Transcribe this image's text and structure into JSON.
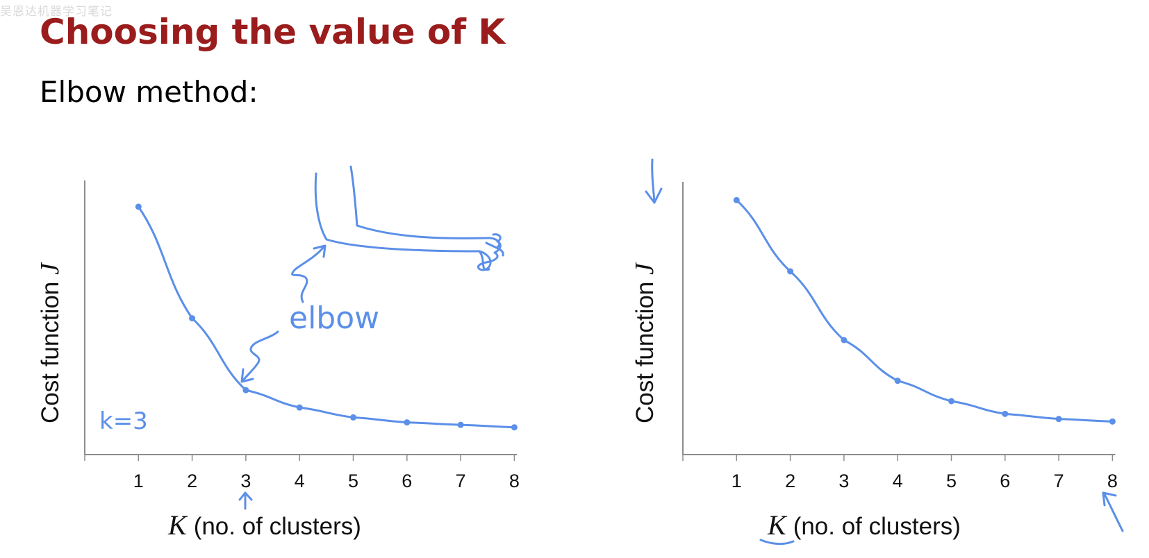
{
  "watermark": "吴恩达机器学习笔记",
  "title": "Choosing the value of K",
  "subtitle": "Elbow method:",
  "annotations": {
    "elbow": "elbow",
    "k_eq": "k=3"
  },
  "chart_data": [
    {
      "type": "line",
      "x": [
        1,
        2,
        3,
        4,
        5,
        6,
        7,
        8
      ],
      "y": [
        1.0,
        0.55,
        0.26,
        0.19,
        0.15,
        0.13,
        0.12,
        0.11
      ],
      "xlabel_symbol": "K",
      "xlabel": "(no. of clusters)",
      "ylabel": "Cost function",
      "ylabel_symbol": "J",
      "xlim": [
        0,
        8
      ],
      "ylim": [
        0,
        1.05
      ],
      "grid": false
    },
    {
      "type": "line",
      "x": [
        1,
        2,
        3,
        4,
        5,
        6,
        7,
        8
      ],
      "y": [
        1.0,
        0.72,
        0.45,
        0.29,
        0.21,
        0.16,
        0.14,
        0.13
      ],
      "xlabel_symbol": "K",
      "xlabel": "(no. of clusters)",
      "ylabel": "Cost function",
      "ylabel_symbol": "J",
      "xlim": [
        0,
        8
      ],
      "ylim": [
        0,
        1.05
      ],
      "grid": false
    }
  ],
  "colors": {
    "title": "#9b1c1c",
    "ink": "#5b8fe8",
    "axis": "#8c8c8c"
  }
}
